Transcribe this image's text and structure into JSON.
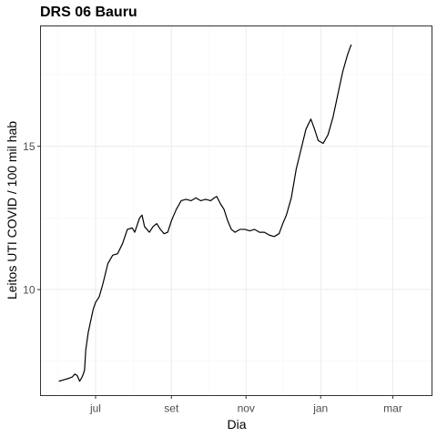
{
  "chart_data": {
    "type": "line",
    "title": "DRS 06 Bauru",
    "xlabel": "Dia",
    "ylabel": "Leitos UTI COVID / 100 mil hab",
    "x_ticks": [
      "jul",
      "set",
      "nov",
      "jan",
      "mar"
    ],
    "x_tick_days": [
      30,
      92,
      153,
      214,
      273
    ],
    "y_ticks": [
      10,
      15
    ],
    "ylim": [
      6.3,
      19.2
    ],
    "xlim": [
      -15,
      305
    ],
    "grid": true,
    "series": [
      {
        "name": "",
        "color": "#000000",
        "points": [
          [
            0,
            6.8
          ],
          [
            4,
            6.85
          ],
          [
            8,
            6.9
          ],
          [
            11,
            6.95
          ],
          [
            13,
            7.05
          ],
          [
            15,
            7.0
          ],
          [
            17,
            6.8
          ],
          [
            19,
            6.95
          ],
          [
            20,
            7.05
          ],
          [
            21,
            7.2
          ],
          [
            22,
            7.9
          ],
          [
            24,
            8.5
          ],
          [
            26,
            8.9
          ],
          [
            28,
            9.3
          ],
          [
            30,
            9.55
          ],
          [
            33,
            9.75
          ],
          [
            36,
            10.2
          ],
          [
            40,
            10.9
          ],
          [
            44,
            11.2
          ],
          [
            48,
            11.25
          ],
          [
            52,
            11.6
          ],
          [
            56,
            12.1
          ],
          [
            60,
            12.15
          ],
          [
            62,
            12.0
          ],
          [
            66,
            12.5
          ],
          [
            68,
            12.6
          ],
          [
            70,
            12.2
          ],
          [
            74,
            12.0
          ],
          [
            77,
            12.2
          ],
          [
            80,
            12.3
          ],
          [
            83,
            12.1
          ],
          [
            86,
            11.95
          ],
          [
            89,
            12.0
          ],
          [
            92,
            12.4
          ],
          [
            96,
            12.8
          ],
          [
            100,
            13.1
          ],
          [
            104,
            13.15
          ],
          [
            108,
            13.1
          ],
          [
            112,
            13.2
          ],
          [
            116,
            13.1
          ],
          [
            120,
            13.15
          ],
          [
            124,
            13.1
          ],
          [
            127,
            13.2
          ],
          [
            129,
            13.25
          ],
          [
            132,
            13.0
          ],
          [
            135,
            12.8
          ],
          [
            138,
            12.4
          ],
          [
            141,
            12.1
          ],
          [
            144,
            12.0
          ],
          [
            148,
            12.1
          ],
          [
            152,
            12.1
          ],
          [
            156,
            12.05
          ],
          [
            160,
            12.1
          ],
          [
            164,
            12.0
          ],
          [
            168,
            12.0
          ],
          [
            172,
            11.9
          ],
          [
            176,
            11.85
          ],
          [
            180,
            11.95
          ],
          [
            183,
            12.3
          ],
          [
            186,
            12.6
          ],
          [
            190,
            13.2
          ],
          [
            194,
            14.2
          ],
          [
            198,
            14.9
          ],
          [
            202,
            15.6
          ],
          [
            206,
            15.95
          ],
          [
            209,
            15.6
          ],
          [
            212,
            15.2
          ],
          [
            216,
            15.1
          ],
          [
            220,
            15.4
          ],
          [
            224,
            16.0
          ],
          [
            228,
            16.8
          ],
          [
            232,
            17.6
          ],
          [
            236,
            18.2
          ],
          [
            239,
            18.55
          ]
        ]
      }
    ]
  }
}
